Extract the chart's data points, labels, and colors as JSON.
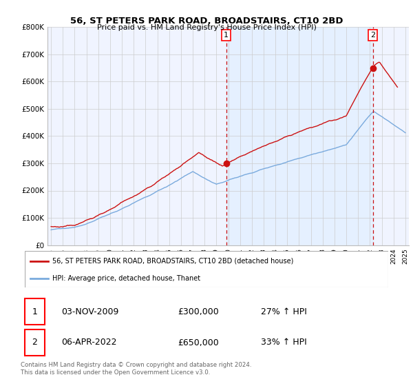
{
  "title": "56, ST PETERS PARK ROAD, BROADSTAIRS, CT10 2BD",
  "subtitle": "Price paid vs. HM Land Registry's House Price Index (HPI)",
  "ylabel_ticks": [
    "£0",
    "£100K",
    "£200K",
    "£300K",
    "£400K",
    "£500K",
    "£600K",
    "£700K",
    "£800K"
  ],
  "ylim": [
    0,
    800000
  ],
  "xlim_start": 1994.7,
  "xlim_end": 2025.3,
  "hpi_color": "#7aaadd",
  "price_color": "#cc1111",
  "marker1_date": 2009.83,
  "marker1_value": 300000,
  "marker1_label": "1",
  "marker2_date": 2022.25,
  "marker2_value": 650000,
  "marker2_label": "2",
  "shade_color": "#ddeeff",
  "shade_alpha": 0.55,
  "legend_line1": "56, ST PETERS PARK ROAD, BROADSTAIRS, CT10 2BD (detached house)",
  "legend_line2": "HPI: Average price, detached house, Thanet",
  "table_row1_num": "1",
  "table_row1_date": "03-NOV-2009",
  "table_row1_price": "£300,000",
  "table_row1_hpi": "27% ↑ HPI",
  "table_row2_num": "2",
  "table_row2_date": "06-APR-2022",
  "table_row2_price": "£650,000",
  "table_row2_hpi": "33% ↑ HPI",
  "footer": "Contains HM Land Registry data © Crown copyright and database right 2024.\nThis data is licensed under the Open Government Licence v3.0.",
  "background_color": "#ffffff",
  "grid_color": "#cccccc",
  "plot_bg_color": "#f0f4ff"
}
